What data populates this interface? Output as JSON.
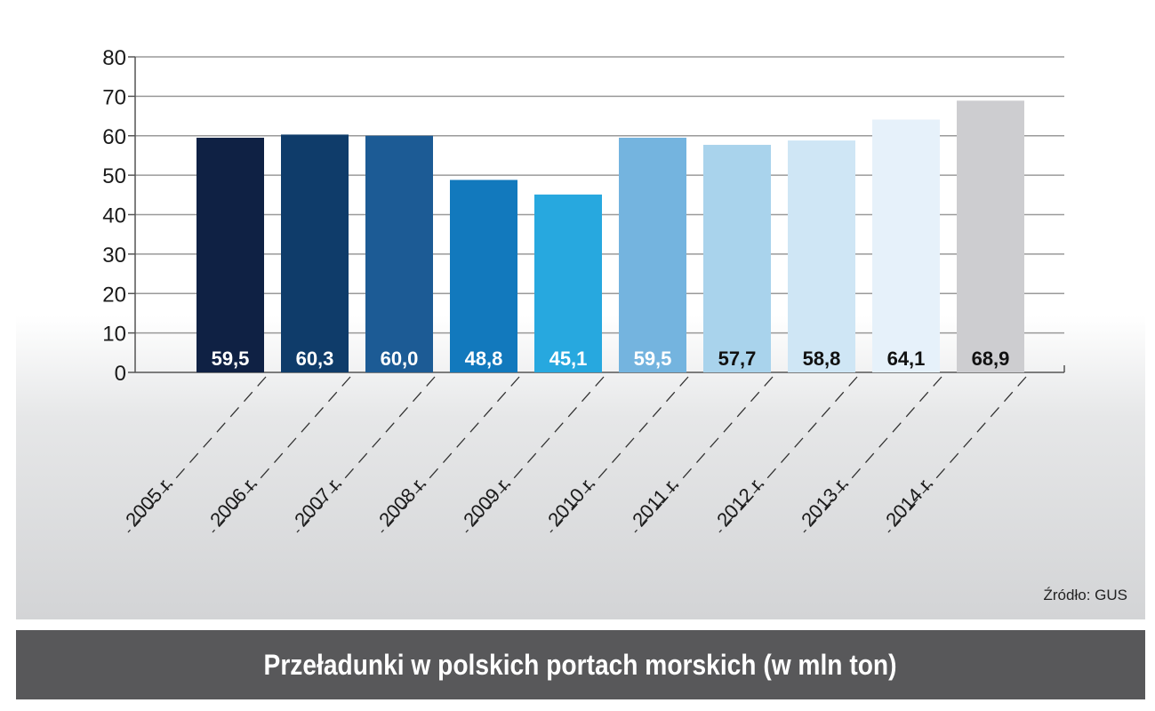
{
  "chart_data": {
    "type": "bar",
    "title": "Przeładunki w polskich portach morskich (w mln ton)",
    "source": "Źródło: GUS",
    "categories": [
      "2005 r.",
      "2006 r.",
      "2007 r.",
      "2008 r.",
      "2009 r.",
      "2010 r.",
      "2011 r.",
      "2012 r.",
      "2013 r.",
      "2014 r."
    ],
    "values": [
      59.5,
      60.3,
      60.0,
      48.8,
      45.1,
      59.5,
      57.7,
      58.8,
      64.1,
      68.9
    ],
    "value_labels": [
      "59,5",
      "60,3",
      "60,0",
      "48,8",
      "45,1",
      "59,5",
      "57,7",
      "58,8",
      "64,1",
      "68,9"
    ],
    "bar_colors": [
      "#0f2144",
      "#0f3c6a",
      "#1c5b95",
      "#1279bd",
      "#27a8df",
      "#74b4df",
      "#a9d3ec",
      "#cfe6f5",
      "#e6f1fa",
      "#cdcdd0"
    ],
    "value_label_colors": [
      "#ffffff",
      "#ffffff",
      "#ffffff",
      "#ffffff",
      "#ffffff",
      "#ffffff",
      "#111111",
      "#111111",
      "#111111",
      "#111111"
    ],
    "yticks": [
      "0",
      "10",
      "20",
      "30",
      "40",
      "50",
      "60",
      "70",
      "80"
    ],
    "ylim": [
      0,
      80
    ],
    "grid": true,
    "xlabel": "",
    "ylabel": ""
  }
}
